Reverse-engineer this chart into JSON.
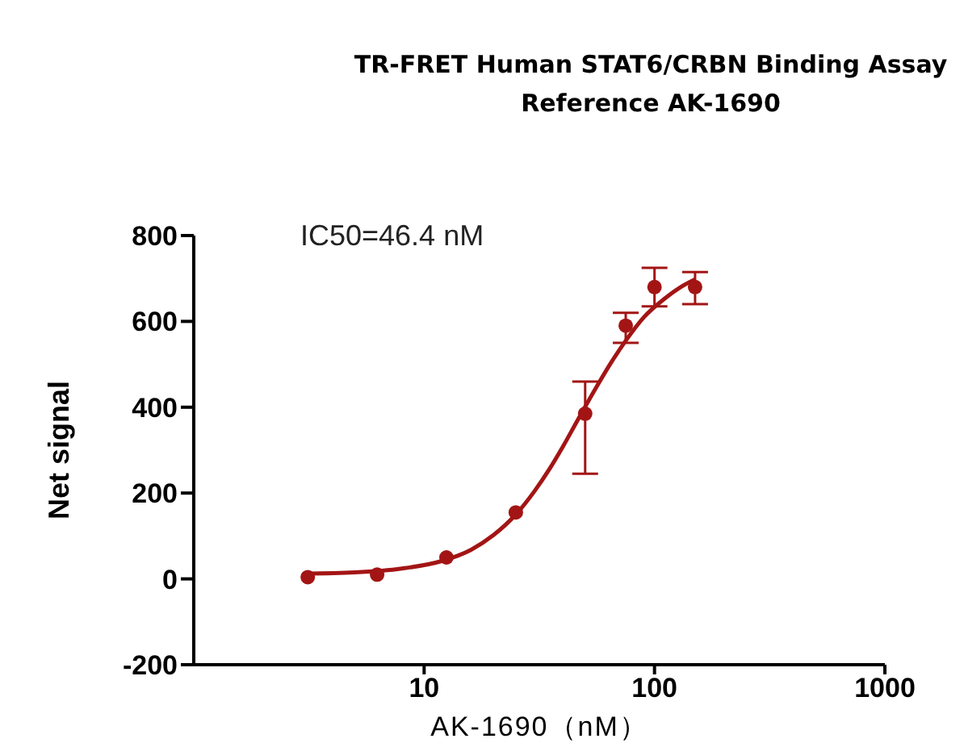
{
  "chart_data": {
    "type": "scatter",
    "title": "TR-FRET Human STAT6/CRBN Binding Assay",
    "subtitle": "Reference AK-1690",
    "xlabel": "AK-1690（nM）",
    "ylabel": "Net signal",
    "annotations": [
      "IC50=46.4 nM"
    ],
    "log": "x",
    "xlim": [
      1,
      1000
    ],
    "xticks": [
      10,
      100,
      1000
    ],
    "ylim": [
      -200,
      800
    ],
    "yticks": [
      -200,
      0,
      200,
      400,
      600,
      800
    ],
    "grid": false,
    "marker": "circle",
    "series": [
      {
        "color": "#a31515",
        "x": [
          3.125,
          6.25,
          12.5,
          25,
          50,
          75,
          100,
          150
        ],
        "values": [
          4,
          10,
          50,
          155,
          385,
          590,
          680,
          680
        ],
        "errors": [
          null,
          null,
          null,
          null,
          [
            245,
            460
          ],
          [
            550,
            620
          ],
          [
            635,
            725
          ],
          [
            640,
            715
          ]
        ]
      },
      {
        "type": "line",
        "color": "#a31515",
        "marker": "none",
        "line_style": "solid",
        "x": [
          3,
          5,
          8,
          12,
          16,
          20,
          25,
          30,
          35,
          40,
          46.4,
          55,
          65,
          75,
          90,
          110,
          130,
          150
        ],
        "values": [
          12,
          15,
          24,
          42,
          68,
          102,
          150,
          203,
          256,
          308,
          370,
          440,
          505,
          555,
          610,
          652,
          680,
          698
        ]
      }
    ]
  }
}
